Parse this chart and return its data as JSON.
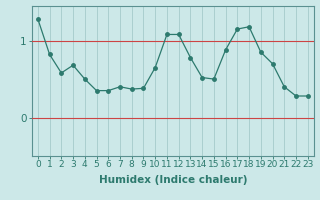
{
  "x": [
    0,
    1,
    2,
    3,
    4,
    5,
    6,
    7,
    8,
    9,
    10,
    11,
    12,
    13,
    14,
    15,
    16,
    17,
    18,
    19,
    20,
    21,
    22,
    23
  ],
  "y": [
    1.28,
    0.82,
    0.58,
    0.68,
    0.5,
    0.35,
    0.35,
    0.4,
    0.37,
    0.38,
    0.65,
    1.08,
    1.08,
    0.78,
    0.52,
    0.5,
    0.88,
    1.15,
    1.18,
    0.85,
    0.7,
    0.4,
    0.28,
    0.28
  ],
  "line_color": "#2d7a6e",
  "marker": "o",
  "marker_size": 2.5,
  "bg_color": "#cce8e8",
  "grid_color": "#aacfcf",
  "xlabel": "Humidex (Indice chaleur)",
  "xlim": [
    -0.5,
    23.5
  ],
  "ylim": [
    -0.5,
    1.45
  ],
  "yticks": [
    0,
    1
  ],
  "xticks": [
    0,
    1,
    2,
    3,
    4,
    5,
    6,
    7,
    8,
    9,
    10,
    11,
    12,
    13,
    14,
    15,
    16,
    17,
    18,
    19,
    20,
    21,
    22,
    23
  ],
  "xticklabels": [
    "0",
    "1",
    "2",
    "3",
    "4",
    "5",
    "6",
    "7",
    "8",
    "9",
    "10",
    "11",
    "12",
    "13",
    "14",
    "15",
    "16",
    "17",
    "18",
    "19",
    "20",
    "21",
    "22",
    "23"
  ],
  "tick_color": "#2d7a6e",
  "label_color": "#2d7a6e",
  "font_size": 6.5,
  "xlabel_fontsize": 7.5,
  "red_line_color": "#cc4444",
  "spine_color": "#5a9090"
}
